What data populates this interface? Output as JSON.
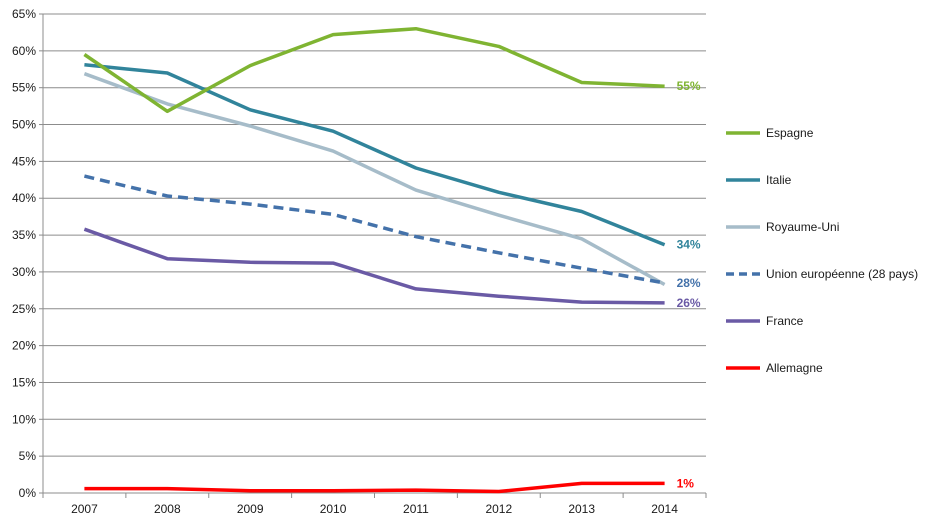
{
  "chart_data": {
    "type": "line",
    "title": "",
    "xlabel": "",
    "ylabel": "",
    "x": [
      "2007",
      "2008",
      "2009",
      "2010",
      "2011",
      "2012",
      "2013",
      "2014"
    ],
    "ylim": [
      0,
      65
    ],
    "yticks": [
      0,
      5,
      10,
      15,
      20,
      25,
      30,
      35,
      40,
      45,
      50,
      55,
      60,
      65
    ],
    "ytick_labels": [
      "0%",
      "5%",
      "10%",
      "15%",
      "20%",
      "25%",
      "30%",
      "35%",
      "40%",
      "45%",
      "50%",
      "55%",
      "60%",
      "65%"
    ],
    "grid": "horizontal",
    "legend_position": "right",
    "series": [
      {
        "name": "Espagne",
        "color": "#7FB432",
        "dashed": false,
        "values": [
          59.5,
          51.8,
          58,
          62.2,
          63,
          60.6,
          55.7,
          55.2
        ],
        "end_label": "55%"
      },
      {
        "name": "Italie",
        "color": "#31849B",
        "dashed": false,
        "values": [
          58.1,
          57,
          52,
          49.1,
          44.1,
          40.8,
          38.2,
          33.7
        ],
        "end_label": "34%"
      },
      {
        "name": "Royaume-Uni",
        "color": "#A6BCC9",
        "dashed": false,
        "values": [
          56.9,
          52.8,
          49.8,
          46.4,
          41.1,
          37.7,
          34.5,
          28.3
        ],
        "end_label": ""
      },
      {
        "name": "Union européenne (28 pays)",
        "color": "#4472AA",
        "dashed": true,
        "values": [
          43,
          40.3,
          39.2,
          37.8,
          34.8,
          32.6,
          30.5,
          28.5
        ],
        "end_label": "28%"
      },
      {
        "name": "France",
        "color": "#6A5AA5",
        "dashed": false,
        "values": [
          35.8,
          31.8,
          31.3,
          31.2,
          27.7,
          26.7,
          25.9,
          25.8
        ],
        "end_label": "26%"
      },
      {
        "name": "Allemagne",
        "color": "#FF0000",
        "dashed": false,
        "values": [
          0.6,
          0.6,
          0.3,
          0.3,
          0.4,
          0.2,
          1.3,
          1.3
        ],
        "end_label": "1%"
      }
    ]
  }
}
